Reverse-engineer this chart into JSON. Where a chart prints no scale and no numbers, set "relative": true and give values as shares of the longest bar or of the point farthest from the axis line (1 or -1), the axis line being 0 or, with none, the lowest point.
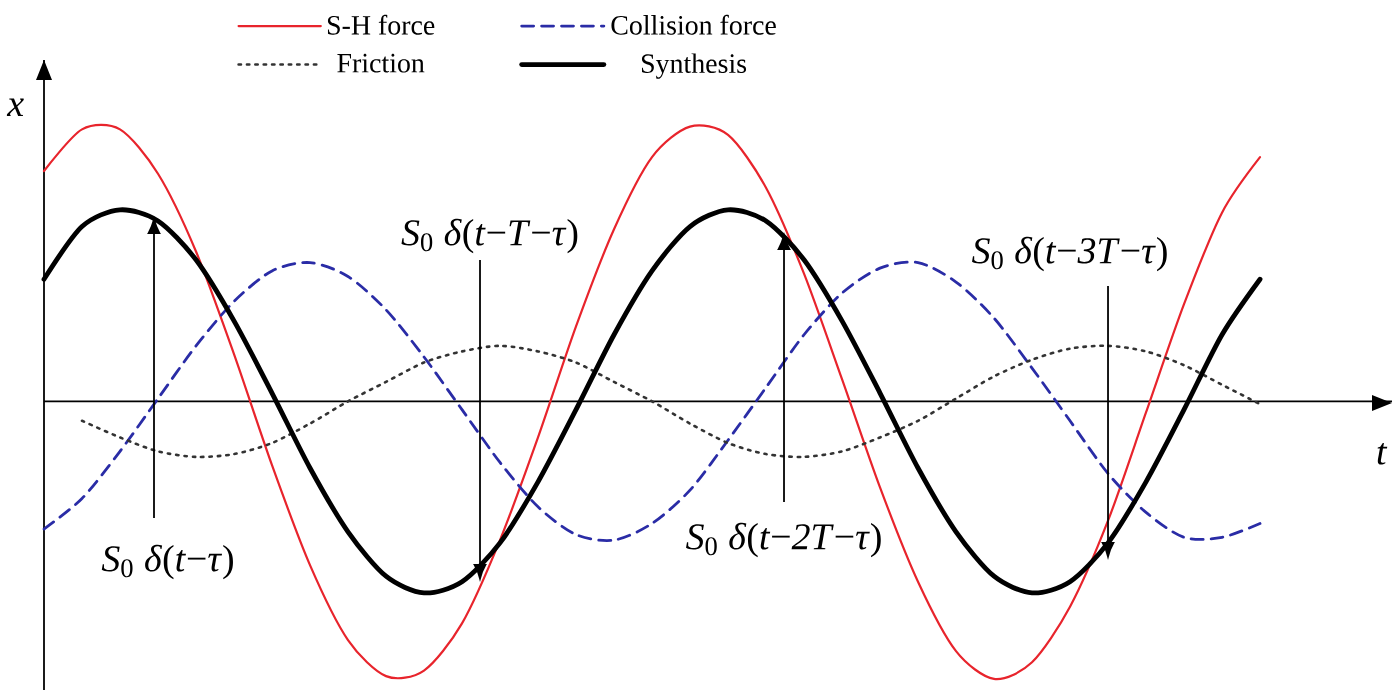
{
  "chart_data": {
    "type": "line",
    "relative": true,
    "xlabel": "t",
    "ylabel": "x",
    "legend": "top",
    "marker": "none",
    "categories": [
      null,
      null,
      null,
      null,
      null,
      null,
      null,
      null,
      null,
      null,
      null,
      null,
      null,
      null,
      null,
      null,
      null,
      null,
      null,
      null,
      null,
      null,
      null,
      null,
      null,
      null,
      null,
      null,
      null,
      null,
      null,
      null,
      null
    ],
    "series": [
      {
        "name": "S-H force",
        "color": "#e8242c",
        "line_style": "solid",
        "values": [
          0.83,
          0.98,
          0.98,
          0.82,
          0.54,
          0.17,
          -0.23,
          -0.59,
          -0.86,
          -0.99,
          -0.97,
          -0.8,
          -0.5,
          -0.13,
          0.27,
          0.62,
          0.88,
          0.99,
          0.96,
          0.77,
          0.46,
          0.08,
          -0.31,
          -0.65,
          -0.9,
          -1.0,
          -0.94,
          -0.74,
          -0.43,
          -0.04,
          0.35,
          0.68,
          0.88
        ]
      },
      {
        "name": "Collision force",
        "color": "#2a2ca6",
        "line_style": "dashed",
        "values": [
          -0.46,
          -0.35,
          -0.18,
          0.01,
          0.2,
          0.36,
          0.47,
          0.5,
          0.45,
          0.33,
          0.16,
          -0.03,
          -0.22,
          -0.38,
          -0.48,
          -0.5,
          -0.44,
          -0.32,
          -0.14,
          0.05,
          0.24,
          0.39,
          0.48,
          0.5,
          0.43,
          0.3,
          0.12,
          -0.07,
          -0.26,
          -0.4,
          -0.49,
          -0.49,
          -0.44
        ]
      },
      {
        "name": "Friction",
        "color": "#333333",
        "line_style": "dotted",
        "values": [
          null,
          -0.07,
          -0.13,
          -0.18,
          -0.2,
          -0.19,
          -0.15,
          -0.08,
          0.0,
          0.07,
          0.14,
          0.18,
          0.2,
          0.18,
          0.14,
          0.07,
          0.0,
          -0.08,
          -0.15,
          -0.19,
          -0.2,
          -0.18,
          -0.13,
          -0.07,
          0.01,
          0.09,
          0.15,
          0.19,
          0.2,
          0.18,
          0.13,
          0.06,
          -0.01
        ]
      },
      {
        "name": "Synthesis",
        "color": "#000000",
        "line_style": "solid",
        "values": [
          0.44,
          0.63,
          0.69,
          0.65,
          0.51,
          0.29,
          0.03,
          -0.24,
          -0.47,
          -0.63,
          -0.69,
          -0.65,
          -0.51,
          -0.29,
          -0.03,
          0.24,
          0.47,
          0.63,
          0.69,
          0.65,
          0.51,
          0.29,
          0.03,
          -0.24,
          -0.47,
          -0.63,
          -0.69,
          -0.65,
          -0.51,
          -0.29,
          -0.03,
          0.24,
          0.44
        ]
      }
    ],
    "annotations": [
      "*S*$_{0}$ *δ*(*t*−*τ*)",
      "*S*$_{0}$ *δ*(*t*−*T*−*τ*)",
      "*S*$_{0}$ *δ*(*t*−*2T*−*τ*)",
      "*S*$_{0}$ *δ*(*t*−*3T*−*τ*)"
    ]
  }
}
